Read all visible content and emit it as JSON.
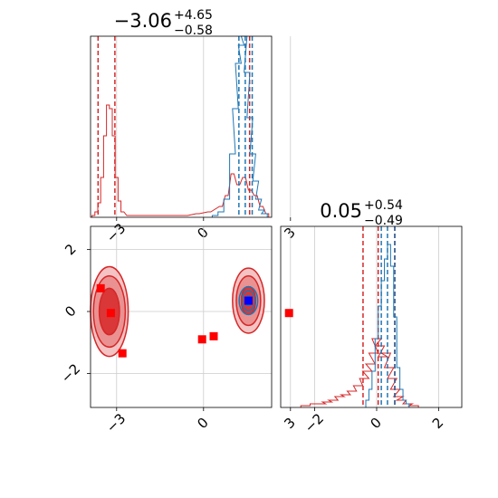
{
  "colors": {
    "red": "#d62728",
    "red_fill": "#e8888a",
    "red_dark": "#d02020",
    "blue": "#1f77b4",
    "marker_red": "#ff0000",
    "marker_blue": "#0000ff",
    "grid": "#cccccc"
  },
  "chart_data": [
    {
      "id": "hist_x",
      "type": "histogram",
      "title": {
        "value": "−3.06",
        "sup": "+4.65",
        "sub": "−0.58"
      },
      "xlim": [
        -3.9,
        2.35
      ],
      "ylim": [
        0,
        1
      ],
      "x_ticks": [
        -3,
        0,
        3
      ],
      "grid": true,
      "series": [
        {
          "color": "#d62728",
          "bins": [
            [
              -3.8,
              0.01
            ],
            [
              -3.7,
              0.03
            ],
            [
              -3.6,
              0.08
            ],
            [
              -3.5,
              0.22
            ],
            [
              -3.4,
              0.45
            ],
            [
              -3.3,
              0.62
            ],
            [
              -3.2,
              0.6
            ],
            [
              -3.1,
              0.45
            ],
            [
              -3.0,
              0.22
            ],
            [
              -2.9,
              0.09
            ],
            [
              -2.8,
              0.03
            ],
            [
              -2.6,
              0.01
            ],
            [
              -1.8,
              0.01
            ],
            [
              -0.6,
              0.01
            ],
            [
              -0.2,
              0.02
            ],
            [
              0.2,
              0.03
            ],
            [
              0.6,
              0.06
            ],
            [
              0.8,
              0.12
            ],
            [
              1.0,
              0.24
            ],
            [
              1.2,
              0.18
            ],
            [
              1.4,
              0.22
            ],
            [
              1.6,
              0.15
            ],
            [
              1.8,
              0.12
            ],
            [
              2.0,
              0.06
            ],
            [
              2.2,
              0.02
            ]
          ],
          "quantiles": [
            -3.64,
            -3.06,
            1.59
          ]
        },
        {
          "color": "#1f77b4",
          "bins": [
            [
              0.4,
              0.01
            ],
            [
              0.6,
              0.03
            ],
            [
              0.8,
              0.1
            ],
            [
              1.0,
              0.35
            ],
            [
              1.1,
              0.6
            ],
            [
              1.2,
              0.85
            ],
            [
              1.3,
              0.95
            ],
            [
              1.4,
              1.0
            ],
            [
              1.5,
              0.8
            ],
            [
              1.6,
              0.55
            ],
            [
              1.7,
              0.35
            ],
            [
              1.8,
              0.2
            ],
            [
              1.9,
              0.1
            ],
            [
              2.0,
              0.04
            ],
            [
              2.1,
              0.02
            ]
          ],
          "quantiles": [
            1.22,
            1.44,
            1.68
          ]
        }
      ]
    },
    {
      "id": "scatter_xy",
      "type": "contour",
      "xlim": [
        -3.9,
        2.35
      ],
      "ylim": [
        -3.1,
        2.75
      ],
      "x_ticks": [
        -3,
        0,
        3
      ],
      "y_ticks": [
        -2,
        0,
        2
      ],
      "grid": true,
      "contours": [
        {
          "color": "#d62728",
          "center": [
            -3.25,
            0.0
          ],
          "rx": [
            0.65,
            0.55,
            0.35
          ],
          "ry": [
            1.45,
            1.15,
            0.75
          ]
        },
        {
          "color": "#d62728",
          "center": [
            1.55,
            0.35
          ],
          "rx": [
            0.55,
            0.42,
            0.25
          ],
          "ry": [
            1.05,
            0.8,
            0.45
          ]
        },
        {
          "color": "#1f77b4",
          "center": [
            1.55,
            0.35
          ],
          "rx": [
            0.32,
            0.22,
            0.12
          ],
          "ry": [
            0.45,
            0.32,
            0.16
          ]
        }
      ],
      "red_markers": [
        [
          -3.55,
          0.75
        ],
        [
          -3.2,
          -0.05
        ],
        [
          -2.8,
          -1.35
        ],
        [
          0.35,
          -0.8
        ],
        [
          -0.05,
          -0.9
        ],
        [
          2.95,
          -0.05
        ]
      ],
      "blue_marker": [
        1.55,
        0.35
      ]
    },
    {
      "id": "hist_y",
      "type": "histogram",
      "title": {
        "value": "0.05",
        "sup": "+0.54",
        "sub": "−0.49"
      },
      "xlim": [
        -3.1,
        2.75
      ],
      "ylim": [
        0,
        1
      ],
      "x_ticks": [
        -2,
        0,
        2
      ],
      "grid": true,
      "series": [
        {
          "color": "#d62728",
          "bins": [
            [
              -2.3,
              0.01
            ],
            [
              -2.0,
              0.02
            ],
            [
              -1.8,
              0.02
            ],
            [
              -1.6,
              0.03
            ],
            [
              -1.4,
              0.04
            ],
            [
              -1.2,
              0.06
            ],
            [
              -1.0,
              0.07
            ],
            [
              -0.8,
              0.09
            ],
            [
              -0.6,
              0.12
            ],
            [
              -0.4,
              0.16
            ],
            [
              -0.3,
              0.2
            ],
            [
              -0.2,
              0.24
            ],
            [
              -0.1,
              0.3
            ],
            [
              0.0,
              0.38
            ],
            [
              0.1,
              0.34
            ],
            [
              0.2,
              0.28
            ],
            [
              0.3,
              0.3
            ],
            [
              0.4,
              0.22
            ],
            [
              0.5,
              0.16
            ],
            [
              0.6,
              0.1
            ],
            [
              0.7,
              0.06
            ],
            [
              0.8,
              0.04
            ],
            [
              1.0,
              0.02
            ],
            [
              1.2,
              0.01
            ]
          ],
          "quantiles": [
            -0.44,
            0.05,
            0.59
          ]
        },
        {
          "color": "#1f77b4",
          "bins": [
            [
              -0.3,
              0.04
            ],
            [
              -0.2,
              0.1
            ],
            [
              -0.1,
              0.2
            ],
            [
              0.0,
              0.38
            ],
            [
              0.1,
              0.56
            ],
            [
              0.2,
              0.7
            ],
            [
              0.3,
              0.82
            ],
            [
              0.4,
              0.9
            ],
            [
              0.5,
              0.78
            ],
            [
              0.6,
              0.5
            ],
            [
              0.7,
              0.22
            ],
            [
              0.8,
              0.1
            ],
            [
              0.9,
              0.04
            ],
            [
              1.0,
              0.02
            ]
          ],
          "quantiles": [
            0.15,
            0.35,
            0.58
          ]
        }
      ]
    }
  ]
}
